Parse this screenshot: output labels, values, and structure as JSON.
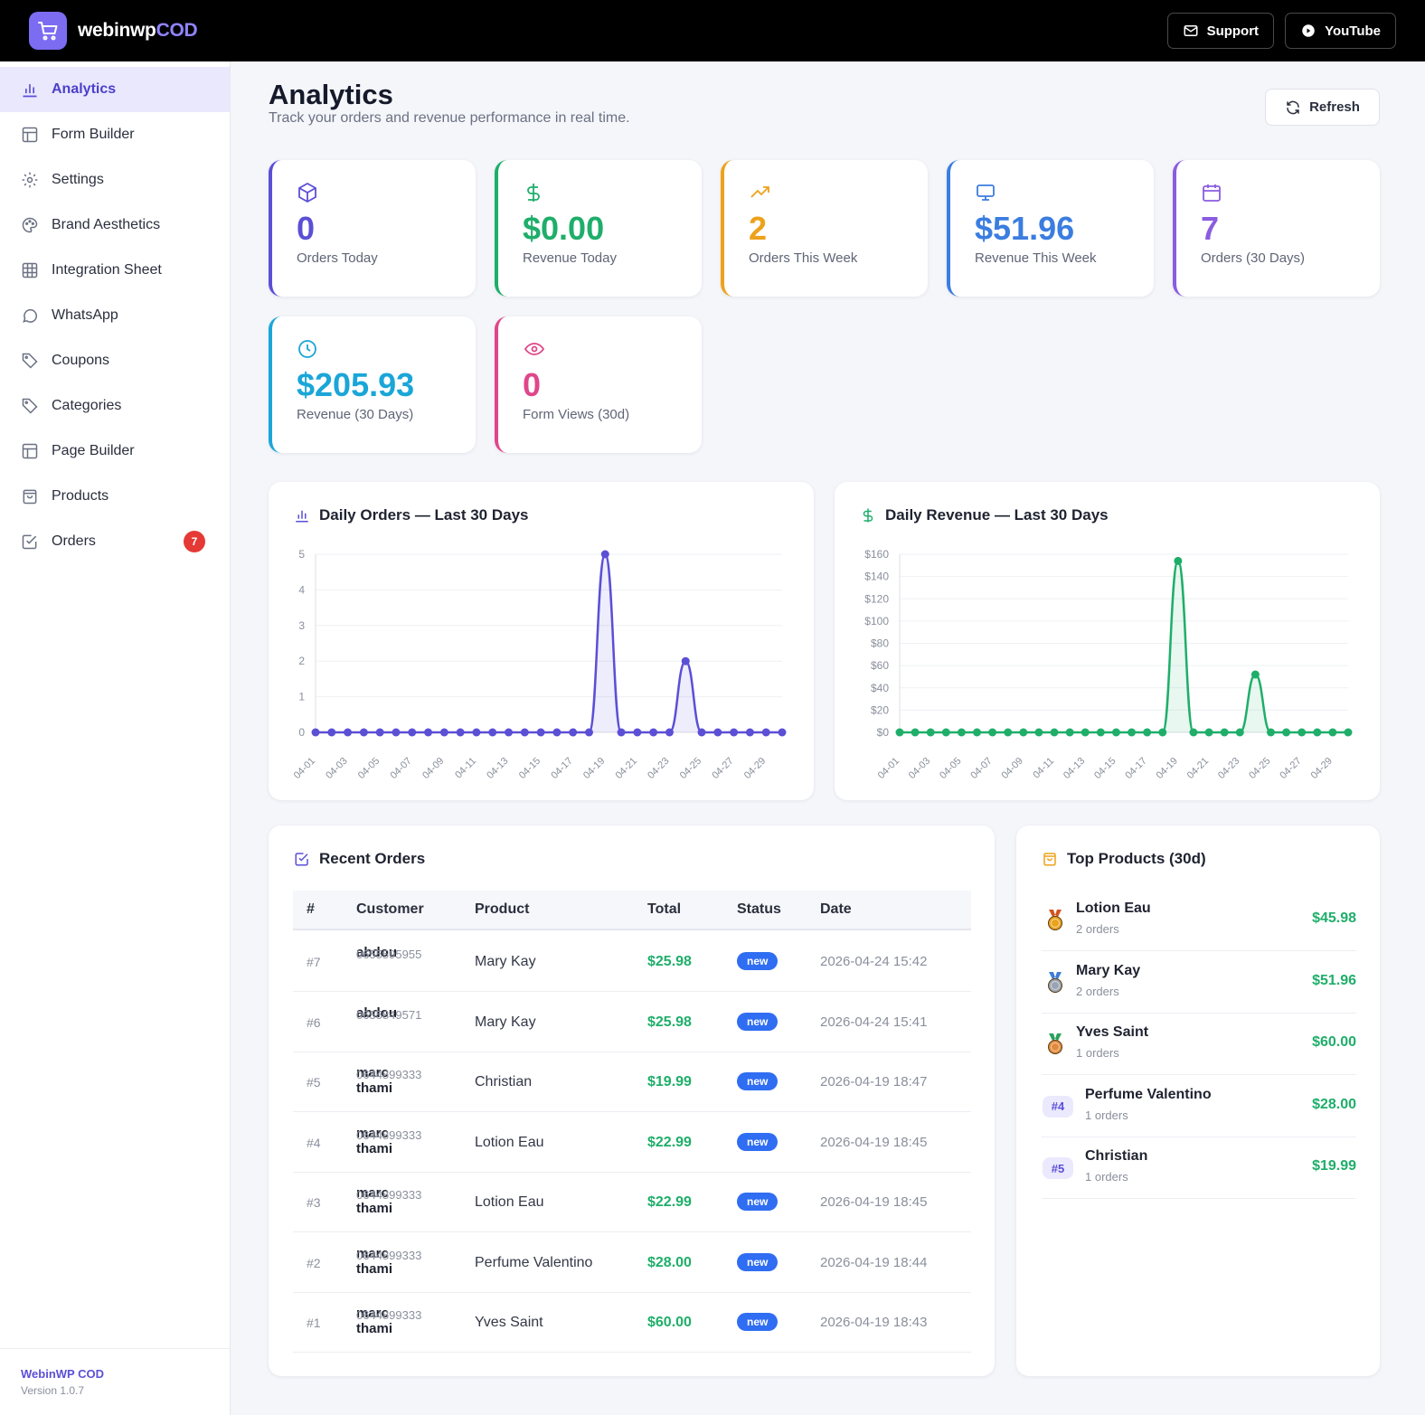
{
  "app": {
    "brand_main": "webinwp",
    "brand_accent": "COD",
    "support_label": "Support",
    "youtube_label": "YouTube"
  },
  "sidebar": {
    "items": [
      {
        "label": "Analytics",
        "icon": "bar-chart-icon",
        "active": true
      },
      {
        "label": "Form Builder",
        "icon": "layout-icon"
      },
      {
        "label": "Settings",
        "icon": "gear-icon"
      },
      {
        "label": "Brand Aesthetics",
        "icon": "palette-icon"
      },
      {
        "label": "Integration Sheet",
        "icon": "grid-icon"
      },
      {
        "label": "WhatsApp",
        "icon": "chat-bubble-icon"
      },
      {
        "label": "Coupons",
        "icon": "tag-icon"
      },
      {
        "label": "Categories",
        "icon": "tag-icon"
      },
      {
        "label": "Page Builder",
        "icon": "layout-icon"
      },
      {
        "label": "Products",
        "icon": "bag-icon"
      },
      {
        "label": "Orders",
        "icon": "checkbox-icon",
        "badge": "7"
      }
    ],
    "footer_name": "WebinWP COD",
    "footer_version": "Version 1.0.7"
  },
  "header": {
    "title": "Analytics",
    "subtitle": "Track your orders and revenue performance in real time.",
    "refresh_label": "Refresh"
  },
  "stats": [
    {
      "value": "0",
      "label": "Orders Today",
      "color": "#5b4fd6",
      "icon": "box-icon"
    },
    {
      "value": "$0.00",
      "label": "Revenue Today",
      "color": "#1fae6a",
      "icon": "dollar-icon"
    },
    {
      "value": "2",
      "label": "Orders This Week",
      "color": "#eda21b",
      "icon": "trending-up-icon"
    },
    {
      "value": "$51.96",
      "label": "Revenue This Week",
      "color": "#3b7de0",
      "icon": "monitor-icon"
    },
    {
      "value": "7",
      "label": "Orders (30 Days)",
      "color": "#8b5ce0",
      "icon": "calendar-icon"
    },
    {
      "value": "$205.93",
      "label": "Revenue (30 Days)",
      "color": "#1aa6d8",
      "icon": "clock-icon"
    },
    {
      "value": "0",
      "label": "Form Views (30d)",
      "color": "#e0468a",
      "icon": "eye-icon"
    }
  ],
  "chart_data": [
    {
      "type": "line",
      "title": "Daily Orders — Last 30 Days",
      "color": "#5b4fd6",
      "ylim": [
        0,
        5
      ],
      "yticks": [
        "0",
        "1",
        "2",
        "3",
        "4",
        "5"
      ],
      "x": [
        "04-01",
        "04-02",
        "04-03",
        "04-04",
        "04-05",
        "04-06",
        "04-07",
        "04-08",
        "04-09",
        "04-10",
        "04-11",
        "04-12",
        "04-13",
        "04-14",
        "04-15",
        "04-16",
        "04-17",
        "04-18",
        "04-19",
        "04-20",
        "04-21",
        "04-22",
        "04-23",
        "04-24",
        "04-25",
        "04-26",
        "04-27",
        "04-28",
        "04-29",
        "04-30"
      ],
      "values": [
        0,
        0,
        0,
        0,
        0,
        0,
        0,
        0,
        0,
        0,
        0,
        0,
        0,
        0,
        0,
        0,
        0,
        0,
        5,
        0,
        0,
        0,
        0,
        2,
        0,
        0,
        0,
        0,
        0,
        0
      ],
      "grid": true
    },
    {
      "type": "line",
      "title": "Daily Revenue — Last 30 Days",
      "color": "#1fae6a",
      "ylim": [
        0,
        160
      ],
      "yticks": [
        "$0",
        "$20",
        "$40",
        "$60",
        "$80",
        "$100",
        "$120",
        "$140",
        "$160"
      ],
      "x": [
        "04-01",
        "04-02",
        "04-03",
        "04-04",
        "04-05",
        "04-06",
        "04-07",
        "04-08",
        "04-09",
        "04-10",
        "04-11",
        "04-12",
        "04-13",
        "04-14",
        "04-15",
        "04-16",
        "04-17",
        "04-18",
        "04-19",
        "04-20",
        "04-21",
        "04-22",
        "04-23",
        "04-24",
        "04-25",
        "04-26",
        "04-27",
        "04-28",
        "04-29",
        "04-30"
      ],
      "values": [
        0,
        0,
        0,
        0,
        0,
        0,
        0,
        0,
        0,
        0,
        0,
        0,
        0,
        0,
        0,
        0,
        0,
        0,
        153.97,
        0,
        0,
        0,
        0,
        51.96,
        0,
        0,
        0,
        0,
        0,
        0
      ],
      "grid": true
    }
  ],
  "recent_orders": {
    "title": "Recent Orders",
    "columns": [
      "#",
      "Customer",
      "Product",
      "Total",
      "Status",
      "Date"
    ],
    "rows": [
      {
        "num": "#7",
        "name": "abdou",
        "phone": "0655595955",
        "product": "Mary Kay",
        "total": "$25.98",
        "status": "new",
        "date": "2026-04-24 15:42"
      },
      {
        "num": "#6",
        "name": "abdou",
        "phone": "0655849571",
        "product": "Mary Kay",
        "total": "$25.98",
        "status": "new",
        "date": "2026-04-24 15:41"
      },
      {
        "num": "#5",
        "name": "marc thami",
        "phone": "0644899333",
        "product": "Christian",
        "total": "$19.99",
        "status": "new",
        "date": "2026-04-19 18:47"
      },
      {
        "num": "#4",
        "name": "marc thami",
        "phone": "0644899333",
        "product": "Lotion Eau",
        "total": "$22.99",
        "status": "new",
        "date": "2026-04-19 18:45"
      },
      {
        "num": "#3",
        "name": "marc thami",
        "phone": "0644899333",
        "product": "Lotion Eau",
        "total": "$22.99",
        "status": "new",
        "date": "2026-04-19 18:45"
      },
      {
        "num": "#2",
        "name": "marc thami",
        "phone": "0644899333",
        "product": "Perfume Valentino",
        "total": "$28.00",
        "status": "new",
        "date": "2026-04-19 18:44"
      },
      {
        "num": "#1",
        "name": "marc thami",
        "phone": "0644899333",
        "product": "Yves Saint",
        "total": "$60.00",
        "status": "new",
        "date": "2026-04-19 18:43"
      }
    ]
  },
  "top_products": {
    "title": "Top Products (30d)",
    "items": [
      {
        "rank": "medal-gold",
        "name": "Lotion Eau",
        "count": "2 orders",
        "revenue": "$45.98"
      },
      {
        "rank": "medal-silver",
        "name": "Mary Kay",
        "count": "2 orders",
        "revenue": "$51.96"
      },
      {
        "rank": "medal-bronze",
        "name": "Yves Saint",
        "count": "1 orders",
        "revenue": "$60.00"
      },
      {
        "rank": "#4",
        "name": "Perfume Valentino",
        "count": "1 orders",
        "revenue": "$28.00"
      },
      {
        "rank": "#5",
        "name": "Christian",
        "count": "1 orders",
        "revenue": "$19.99"
      }
    ]
  }
}
